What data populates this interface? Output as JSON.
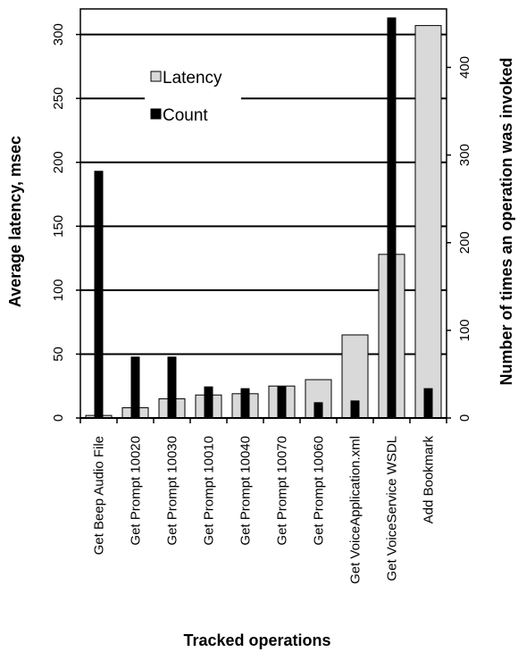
{
  "chart_data": {
    "type": "bar",
    "title": "",
    "xlabel": "Tracked operations",
    "ylabel": "Average latency, msec",
    "y2label": "Number of times an operation was invoked",
    "ylim": [
      0,
      320
    ],
    "y2lim": [
      0,
      466.7
    ],
    "yticks": [
      0,
      50,
      100,
      150,
      200,
      250,
      300
    ],
    "y2ticks": [
      0,
      100,
      200,
      300,
      400
    ],
    "grid": true,
    "legend": "upper-left",
    "categories": [
      "Get Beep Audio File",
      "Get Prompt 10020",
      "Get Prompt 10030",
      "Get Prompt 10010",
      "Get Prompt 10040",
      "Get Prompt 10070",
      "Get Prompt 10060",
      "Get VoiceApplication.xml",
      "Get VoiceService WSDL",
      "Add Bookmark"
    ],
    "series": [
      {
        "name": "Latency",
        "axis": "left",
        "color": "#d9d9d9",
        "values": [
          2,
          8,
          15,
          18,
          19,
          25,
          30,
          65,
          128,
          307
        ]
      },
      {
        "name": "Count",
        "axis": "right",
        "color": "#000000",
        "values": [
          282,
          70,
          70,
          36,
          34,
          36,
          18,
          20,
          457,
          34
        ]
      }
    ]
  }
}
